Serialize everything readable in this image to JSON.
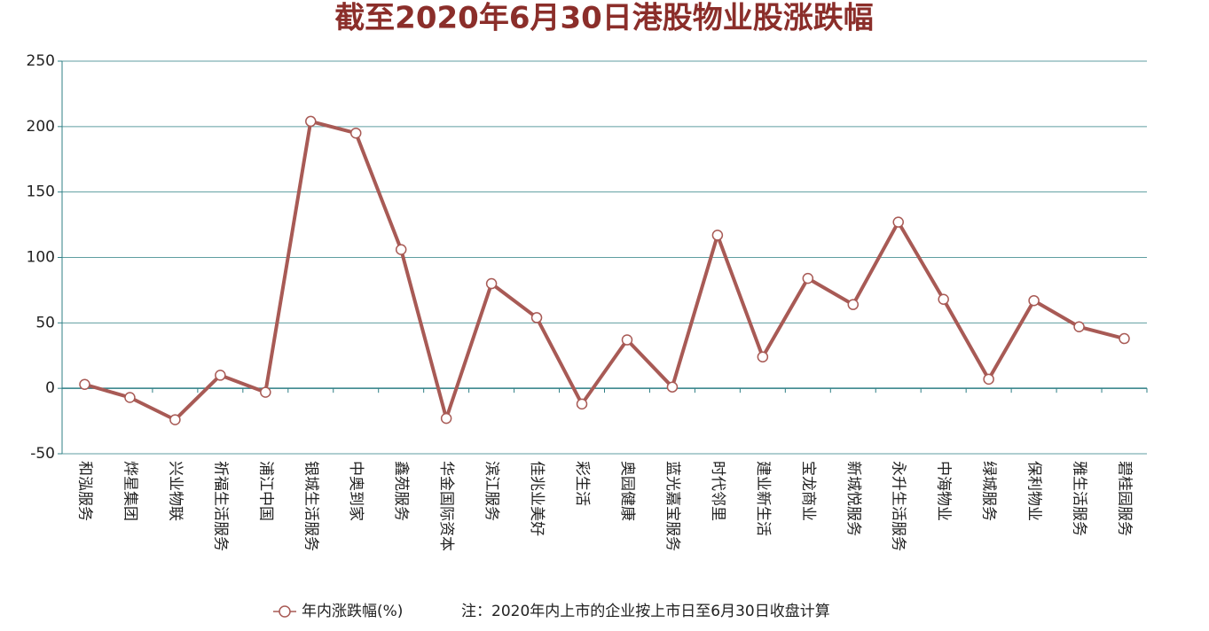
{
  "chart_data": {
    "type": "line",
    "title": "截至2020年6月30日港股物业股涨跌幅",
    "categories": [
      "和泓服务",
      "烨星集团",
      "兴业物联",
      "祈福生活服务",
      "浦江中国",
      "银城生活服务",
      "中奥到家",
      "鑫苑服务",
      "华金国际资本",
      "滨江服务",
      "佳兆业美好",
      "彩生活",
      "奥园健康",
      "蓝光嘉宝服务",
      "时代邻里",
      "建业新生活",
      "宝龙商业",
      "新城悦服务",
      "永升生活服务",
      "中海物业",
      "绿城服务",
      "保利物业",
      "雅生活服务",
      "碧桂园服务"
    ],
    "series": [
      {
        "name": "年内涨跌幅(%)",
        "color": "#a85a55",
        "values": [
          3,
          -7,
          -24,
          10,
          -3,
          204,
          195,
          106,
          -23,
          80,
          54,
          -12,
          37,
          1,
          117,
          24,
          84,
          64,
          127,
          68,
          7,
          67,
          47,
          38
        ]
      }
    ],
    "ylim": [
      -50,
      250
    ],
    "yticks": [
      -50,
      0,
      50,
      100,
      150,
      200,
      250
    ],
    "grid": true,
    "note": "注：2020年内上市的企业按上市日至6月30日收盘计算"
  }
}
